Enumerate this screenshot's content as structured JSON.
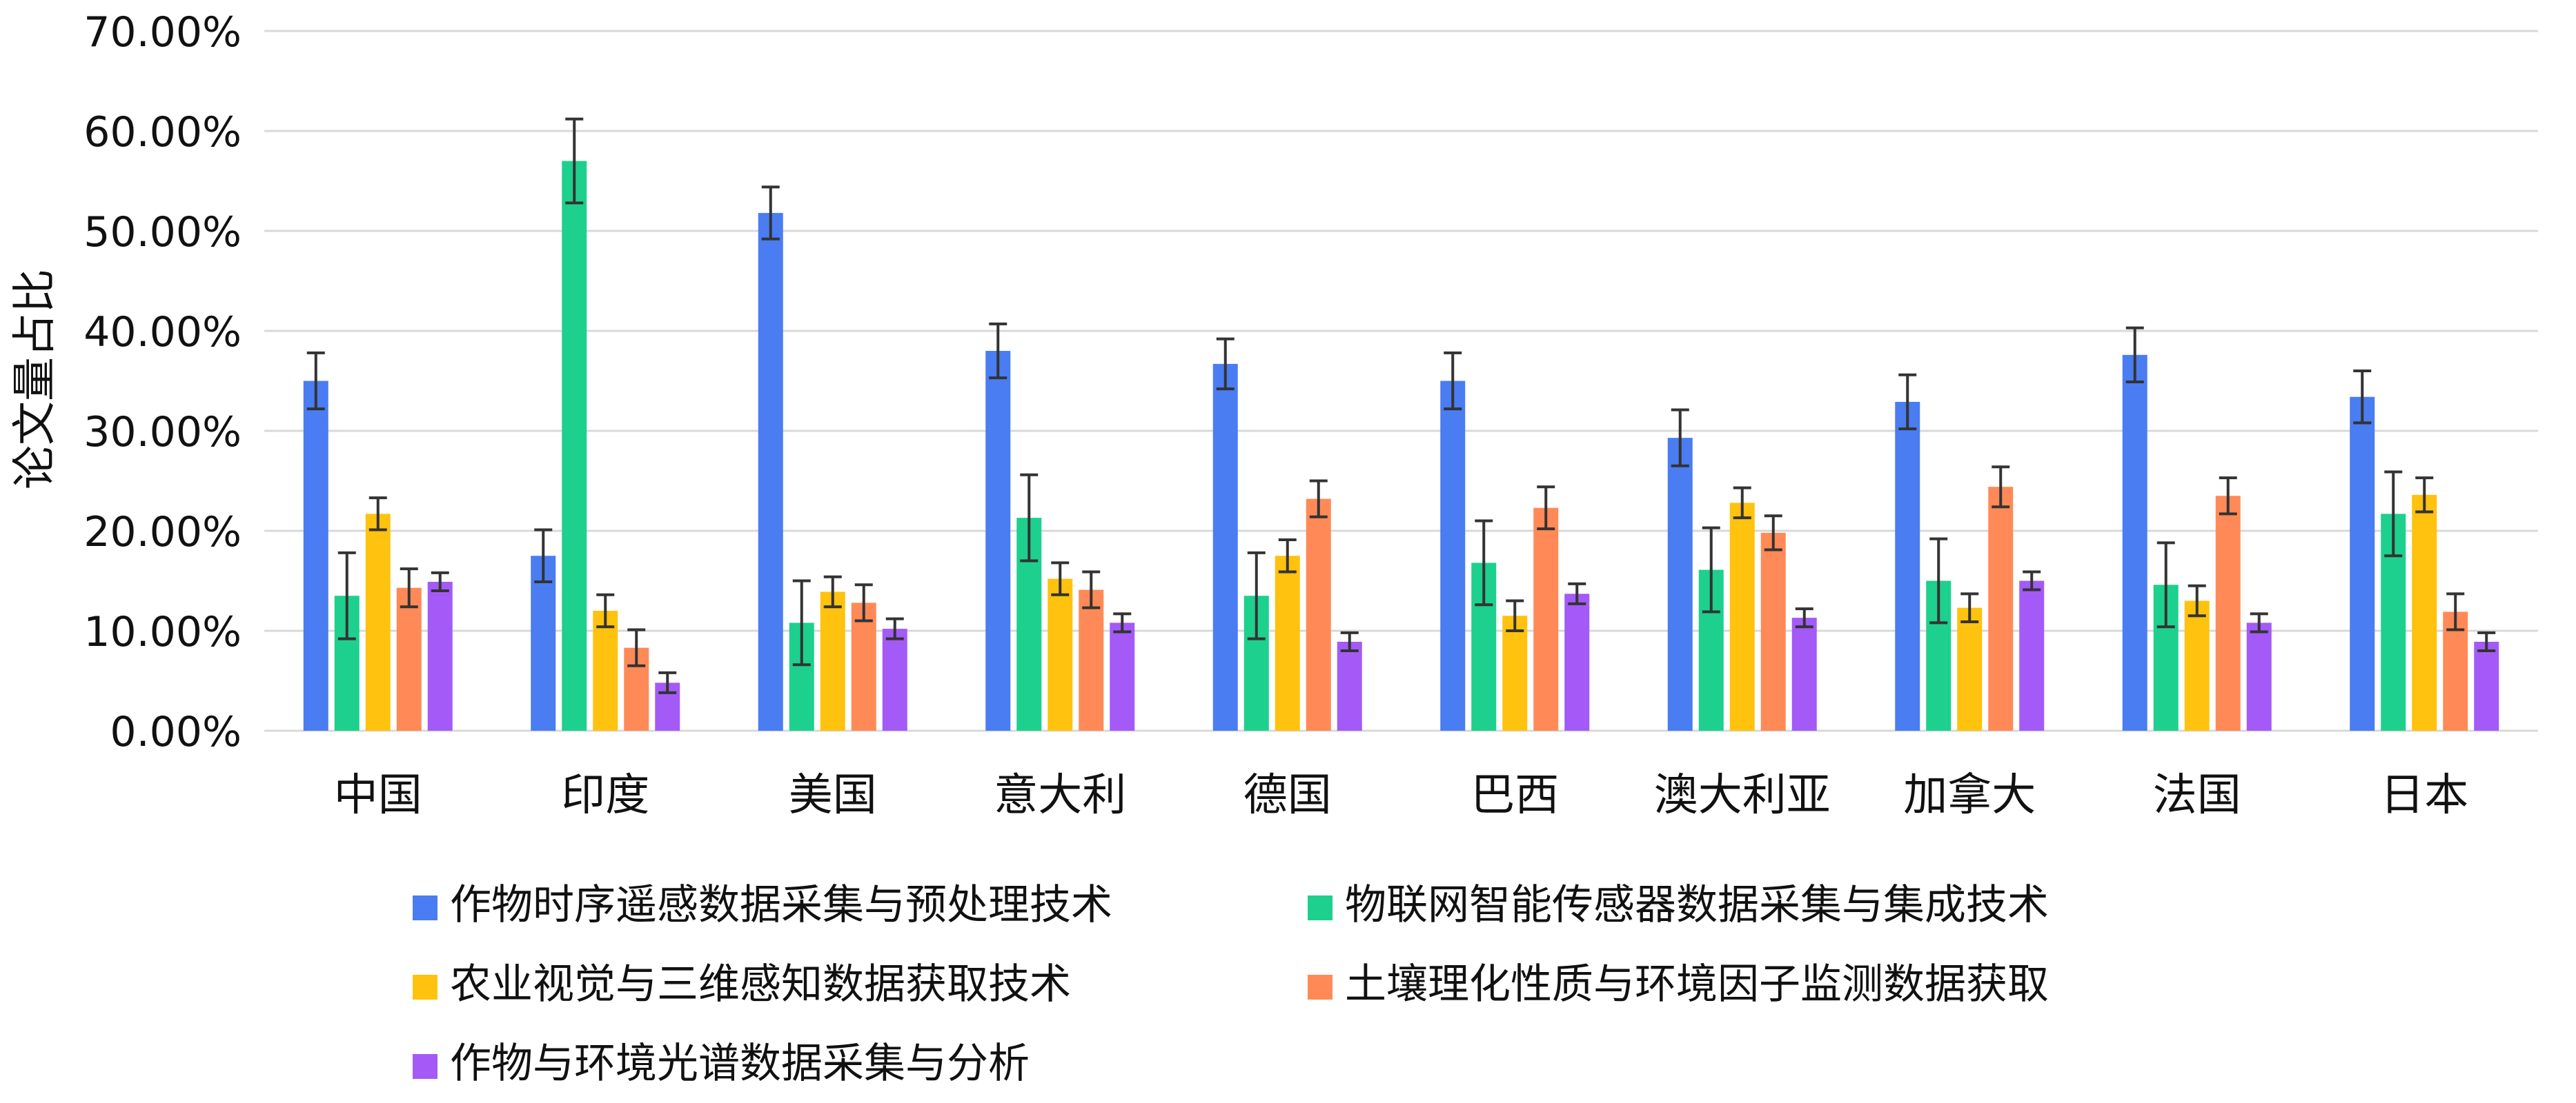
{
  "chart_data": {
    "type": "bar",
    "title": "",
    "xlabel": "",
    "ylabel": "论文量占比",
    "ylim": [
      0,
      70
    ],
    "yticks": [
      "0.00%",
      "10.00%",
      "20.00%",
      "30.00%",
      "40.00%",
      "50.00%",
      "60.00%",
      "70.00%"
    ],
    "grid": true,
    "legend_position": "bottom",
    "categories": [
      "中国",
      "印度",
      "美国",
      "意大利",
      "德国",
      "巴西",
      "澳大利亚",
      "加拿大",
      "法国",
      "日本"
    ],
    "series": [
      {
        "name": "作物时序遥感数据采集与预处理技术",
        "color": "#4a7cf2",
        "values": [
          35.0,
          17.5,
          51.8,
          38.0,
          36.7,
          35.0,
          29.3,
          32.9,
          37.6,
          33.4
        ],
        "errors": [
          2.8,
          2.6,
          2.6,
          2.7,
          2.5,
          2.8,
          2.8,
          2.7,
          2.7,
          2.6
        ]
      },
      {
        "name": "物联网智能传感器数据采集与集成技术",
        "color": "#1dd08e",
        "values": [
          13.5,
          57.0,
          10.8,
          21.3,
          13.5,
          16.8,
          16.1,
          15.0,
          14.6,
          21.7
        ],
        "errors": [
          4.3,
          4.2,
          4.2,
          4.3,
          4.3,
          4.2,
          4.2,
          4.2,
          4.2,
          4.2
        ]
      },
      {
        "name": "农业视觉与三维感知数据获取技术",
        "color": "#ffc20e",
        "values": [
          21.7,
          12.0,
          13.9,
          15.2,
          17.5,
          11.5,
          22.8,
          12.3,
          13.0,
          23.6
        ],
        "errors": [
          1.6,
          1.6,
          1.5,
          1.6,
          1.6,
          1.5,
          1.5,
          1.4,
          1.5,
          1.7
        ]
      },
      {
        "name": "土壤理化性质与环境因子监测数据获取",
        "color": "#ff8a57",
        "values": [
          14.3,
          8.3,
          12.8,
          14.1,
          23.2,
          22.3,
          19.8,
          24.4,
          23.5,
          11.9
        ],
        "errors": [
          1.9,
          1.8,
          1.8,
          1.8,
          1.8,
          2.1,
          1.7,
          2.0,
          1.8,
          1.8
        ]
      },
      {
        "name": "作物与环境光谱数据采集与分析",
        "color": "#a35af6",
        "values": [
          14.9,
          4.8,
          10.2,
          10.8,
          8.9,
          13.7,
          11.3,
          15.0,
          10.8,
          8.9
        ],
        "errors": [
          0.9,
          1.0,
          1.0,
          0.9,
          0.9,
          1.0,
          0.9,
          0.9,
          0.9,
          0.9
        ]
      }
    ]
  }
}
